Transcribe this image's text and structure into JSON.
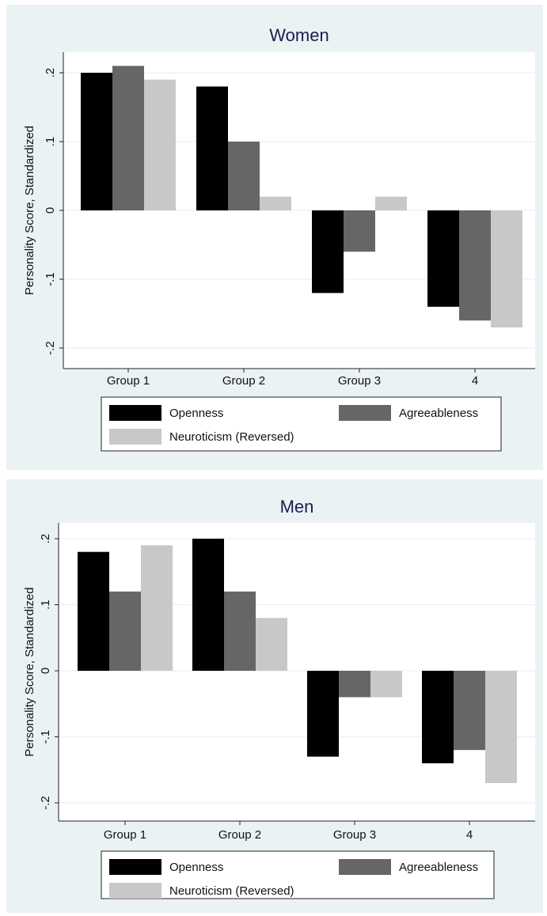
{
  "chart_data": [
    {
      "type": "bar",
      "title": "Women",
      "ylabel": "Personality Score, Standardized",
      "xlabel": "",
      "categories": [
        "Group 1",
        "Group 2",
        "Group 3",
        "4"
      ],
      "yticks": [
        ".2",
        ".1",
        "0",
        "-.1",
        "-.2"
      ],
      "ylim": [
        -0.2,
        0.2
      ],
      "grid": true,
      "legend_position": "bottom",
      "series": [
        {
          "name": "Openness",
          "color": "#000000",
          "values": [
            0.2,
            0.18,
            -0.12,
            -0.14
          ]
        },
        {
          "name": "Agreeableness",
          "color": "#666666",
          "values": [
            0.21,
            0.1,
            -0.06,
            -0.16
          ]
        },
        {
          "name": "Neuroticism (Reversed)",
          "color": "#c8c8c8",
          "values": [
            0.19,
            0.02,
            0.02,
            -0.17
          ]
        }
      ]
    },
    {
      "type": "bar",
      "title": "Men",
      "ylabel": "Personality Score, Standardized",
      "xlabel": "",
      "categories": [
        "Group 1",
        "Group 2",
        "Group 3",
        "4"
      ],
      "yticks": [
        ".2",
        ".1",
        "0",
        "-.1",
        "-.2"
      ],
      "ylim": [
        -0.2,
        0.2
      ],
      "grid": true,
      "legend_position": "bottom",
      "series": [
        {
          "name": "Openness",
          "color": "#000000",
          "values": [
            0.18,
            0.2,
            -0.13,
            -0.14
          ]
        },
        {
          "name": "Agreeableness",
          "color": "#666666",
          "values": [
            0.12,
            0.12,
            -0.04,
            -0.12
          ]
        },
        {
          "name": "Neuroticism (Reversed)",
          "color": "#c8c8c8",
          "values": [
            0.19,
            0.08,
            -0.04,
            -0.17
          ]
        }
      ]
    }
  ]
}
